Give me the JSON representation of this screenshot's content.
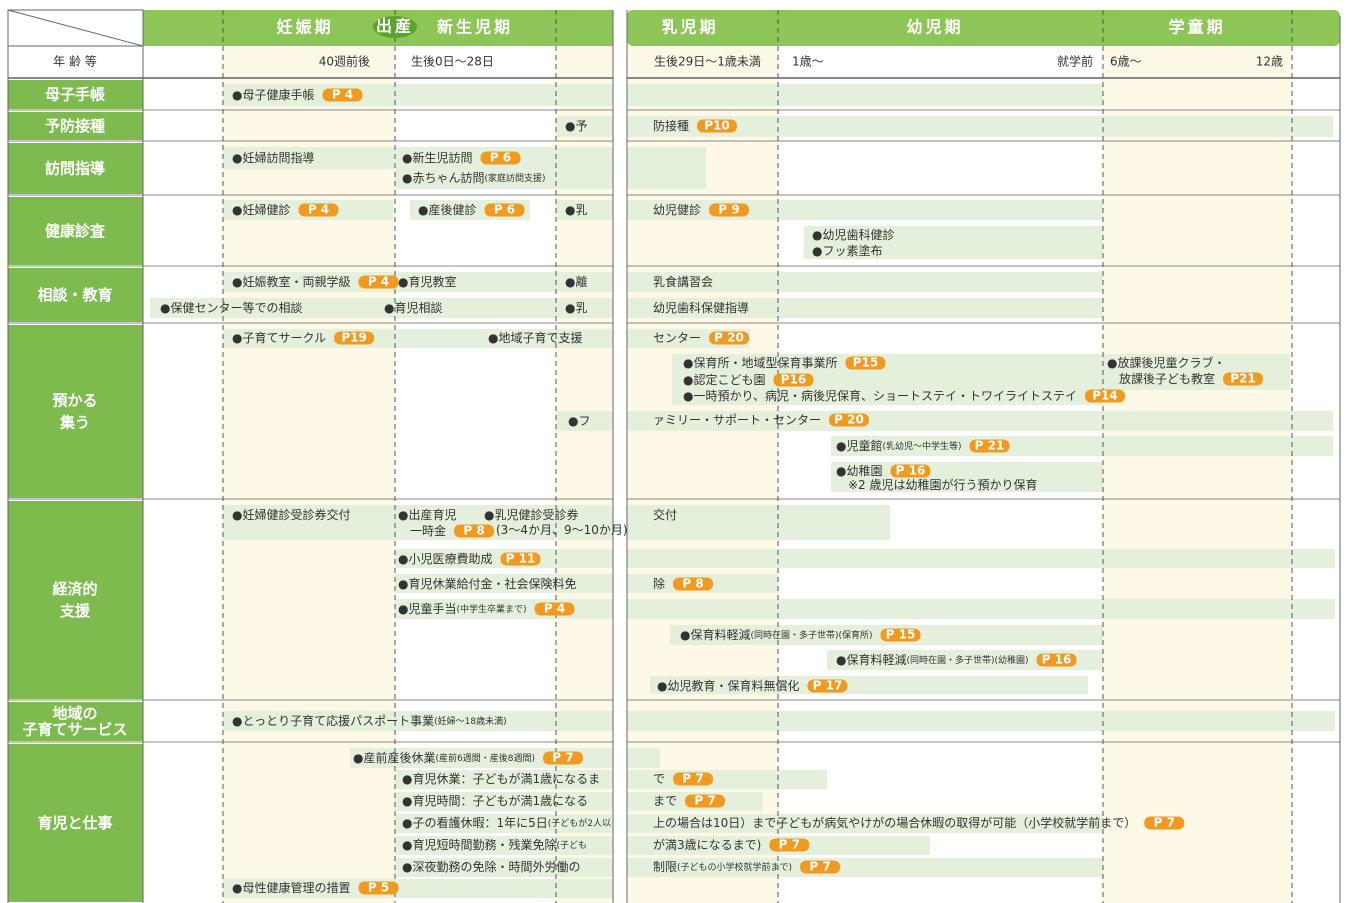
{
  "header": {
    "corner": "年 齢 等",
    "periods": [
      "妊娠期",
      "出産",
      "新生児期",
      "乳児期",
      "幼児期",
      "学童期"
    ],
    "ages": [
      "40週前後",
      "生後0日〜28日",
      "生後29日〜1歳未満",
      "1歳〜",
      "就学前",
      "6歳〜",
      "12歳"
    ]
  },
  "rows": [
    {
      "label": [
        "母子手帳"
      ]
    },
    {
      "label": [
        "予防接種"
      ]
    },
    {
      "label": [
        "訪問指導"
      ]
    },
    {
      "label": [
        "健康診査"
      ]
    },
    {
      "label": [
        "相談・教育"
      ]
    },
    {
      "label": [
        "預かる",
        "集う"
      ]
    },
    {
      "label": [
        "経済的",
        "支援"
      ]
    },
    {
      "label": [
        "地域の",
        "子育てサービス"
      ]
    },
    {
      "label": [
        "育児と仕事"
      ]
    }
  ],
  "items": [
    {
      "text": "●母子健康手帳",
      "page": "P 4"
    },
    {
      "text": "●予"
    },
    {
      "text": "防接種",
      "page": "P10"
    },
    {
      "text": "●妊婦訪問指導"
    },
    {
      "text": "●新生児訪問",
      "page": "P 6"
    },
    {
      "text": "●赤ちゃん訪問",
      "note": "(家庭訪問支援)"
    },
    {
      "text": "●妊婦健診",
      "page": "P 4"
    },
    {
      "text": "●産後健診",
      "page": "P 6"
    },
    {
      "text": "●乳"
    },
    {
      "text": "幼児健診",
      "page": "P 9"
    },
    {
      "text": "●幼児歯科健診"
    },
    {
      "text": "●フッ素塗布"
    },
    {
      "text": "●妊娠教室・両親学級",
      "page": "P 4"
    },
    {
      "text": "●育児教室"
    },
    {
      "text": "●離"
    },
    {
      "text": "乳食講習会"
    },
    {
      "text": "●保健センター等での相談"
    },
    {
      "text": "●育児相談"
    },
    {
      "text": "●乳"
    },
    {
      "text": "幼児歯科保健指導"
    },
    {
      "text": "●子育てサークル",
      "page": "P19"
    },
    {
      "text": "●地域子育て支援"
    },
    {
      "text": "センター",
      "page": "P 20"
    },
    {
      "text": "●保育所・地域型保育事業所",
      "page": "P15"
    },
    {
      "text": "●認定こども園",
      "page": "P16"
    },
    {
      "text": "●一時預かり、病児・病後児保育、ショートステイ・トワイライトステイ",
      "page": "P14"
    },
    {
      "text": "●放課後児童クラブ・"
    },
    {
      "text": "放課後子ども教室",
      "page": "P21"
    },
    {
      "text": "●フ"
    },
    {
      "text": "ァミリー・サポート・センター",
      "page": "P 20"
    },
    {
      "text": "●児童館",
      "note": "(乳幼児〜中学生等)",
      "page": "P 21"
    },
    {
      "text": "●幼稚園",
      "page": "P 16"
    },
    {
      "text": "※2 歳児は幼稚園が行う預かり保育"
    },
    {
      "text": "●妊婦健診受診券交付"
    },
    {
      "text": "●出産育児"
    },
    {
      "text": "一時金",
      "page": "P 8"
    },
    {
      "text": "●乳児健診受診券"
    },
    {
      "text": "(3〜4か月、9〜10か月)"
    },
    {
      "text": "交付"
    },
    {
      "text": "●小児医療費助成",
      "page": "P 11"
    },
    {
      "text": "●育児休業給付金・社会保険料免"
    },
    {
      "text": "除",
      "page": "P 8"
    },
    {
      "text": "●児童手当",
      "note": "(中学生卒業まで)",
      "page": "P 4"
    },
    {
      "text": "●保育料軽減",
      "note": "(同時在園・多子世帯)(保育所)",
      "page": "P 15"
    },
    {
      "text": "●保育料軽減",
      "note": "(同時在園・多子世帯)(幼稚園)",
      "page": "P 16"
    },
    {
      "text": "●幼児教育・保育料無償化",
      "page": "P 17"
    },
    {
      "text": "●とっとり子育て応援パスポート事業",
      "note": "(妊婦〜18歳未満)"
    },
    {
      "text": "●産前産後休業",
      "note": "(産前6週間・産後8週間)",
      "page": "P 7"
    },
    {
      "text": "●育児休業：子どもが満1歳になるま"
    },
    {
      "text": "で",
      "page": "P 7"
    },
    {
      "text": "●育児時間：子どもが満1歳になる"
    },
    {
      "text": "まで",
      "page": "P 7"
    },
    {
      "text": "●子の看護休暇：1年に5日",
      "note": "(子どもが2人以"
    },
    {
      "text": "上の場合は10日）まで子どもが病気やけがの場合休暇の取得が可能（小学校就学前まで）",
      "page": "P 7"
    },
    {
      "text": "●育児短時間勤務・残業免除",
      "note": "(子ども"
    },
    {
      "text": "が満3歳になるまで)",
      "page": "P 7"
    },
    {
      "text": "●深夜勤務の免除・時間外労働の"
    },
    {
      "text": "制限",
      "note": "(子どもの小学校就学前まで)",
      "page": "P 7"
    },
    {
      "text": "●母性健康管理の措置",
      "page": "P 5"
    }
  ]
}
